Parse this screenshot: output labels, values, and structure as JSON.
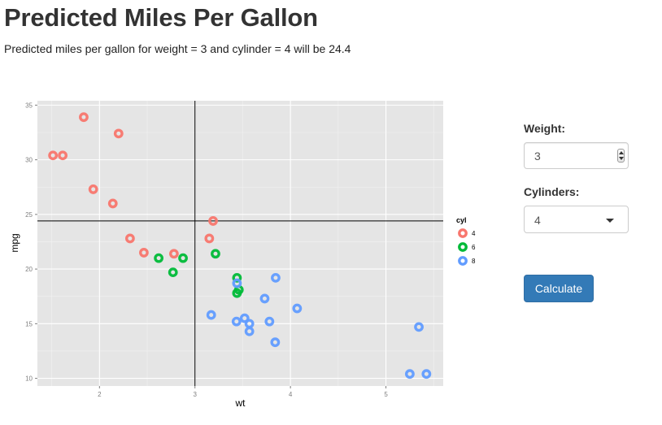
{
  "page": {
    "title": "Predicted Miles Per Gallon",
    "subtitle": "Predicted miles per gallon for weight = 3 and cylinder = 4 will be 24.4"
  },
  "inputs": {
    "weight_label": "Weight:",
    "weight_value": "3",
    "cylinders_label": "Cylinders:",
    "cylinders_value": "4",
    "calculate_label": "Calculate"
  },
  "chart_data": {
    "type": "scatter",
    "xlabel": "wt",
    "ylabel": "mpg",
    "xlim": [
      1.35,
      5.6
    ],
    "ylim": [
      9.3,
      35.4
    ],
    "x_ticks": [
      2,
      3,
      4,
      5
    ],
    "y_ticks": [
      10,
      15,
      20,
      25,
      30,
      35
    ],
    "grid": true,
    "legend_title": "cyl",
    "legend_position": "right",
    "reference_lines": {
      "vline_x": 3,
      "hline_y": 24.4
    },
    "series": [
      {
        "name": "4",
        "color": "#F8766D",
        "points": [
          [
            1.835,
            33.9
          ],
          [
            2.2,
            32.4
          ],
          [
            1.513,
            30.4
          ],
          [
            1.615,
            30.4
          ],
          [
            1.935,
            27.3
          ],
          [
            2.14,
            26.0
          ],
          [
            3.19,
            24.4
          ],
          [
            2.32,
            22.8
          ],
          [
            3.15,
            22.8
          ],
          [
            2.465,
            21.5
          ],
          [
            2.78,
            21.4
          ]
        ]
      },
      {
        "name": "6",
        "color": "#00BA38",
        "points": [
          [
            2.62,
            21.0
          ],
          [
            2.875,
            21.0
          ],
          [
            3.215,
            21.4
          ],
          [
            3.44,
            19.2
          ],
          [
            3.46,
            18.1
          ],
          [
            3.44,
            17.8
          ],
          [
            2.77,
            19.7
          ]
        ]
      },
      {
        "name": "8",
        "color": "#619CFF",
        "points": [
          [
            3.44,
            18.7
          ],
          [
            3.57,
            14.3
          ],
          [
            3.17,
            15.8
          ],
          [
            3.435,
            15.2
          ],
          [
            3.52,
            15.5
          ],
          [
            3.57,
            15.0
          ],
          [
            3.73,
            17.3
          ],
          [
            3.78,
            15.2
          ],
          [
            3.84,
            13.3
          ],
          [
            3.845,
            19.2
          ],
          [
            4.07,
            16.4
          ],
          [
            5.25,
            10.4
          ],
          [
            5.424,
            10.4
          ],
          [
            5.345,
            14.7
          ]
        ]
      }
    ]
  }
}
